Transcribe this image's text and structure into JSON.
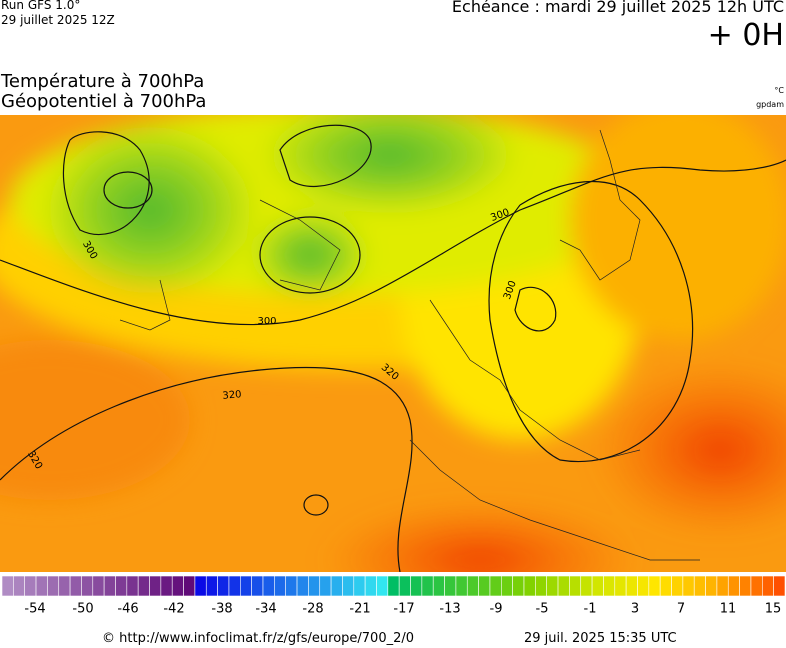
{
  "header": {
    "run": "Run GFS 1.0°",
    "run_date": "29 juillet 2025 12Z",
    "valid": "Echéance : mardi 29 juillet 2025 12h UTC",
    "lead": "+ 0H",
    "title_1": "Température à 700hPa",
    "title_2": "Géopotentiel à 700hPa",
    "unit_temp": "°C",
    "unit_geo": "gpdam"
  },
  "map": {
    "contour_labels": [
      300,
      300,
      300,
      300,
      320,
      320,
      320
    ]
  },
  "colorbar": {
    "labels": [
      -54,
      -50,
      -46,
      -42,
      -38,
      -34,
      -28,
      -21,
      -17,
      -13,
      -9,
      -5,
      -1,
      3,
      7,
      11,
      15
    ]
  },
  "footer": {
    "url": "© http://www.infoclimat.fr/z/gfs/europe/700_2/0",
    "generated": "29 juil. 2025 15:35 UTC"
  }
}
